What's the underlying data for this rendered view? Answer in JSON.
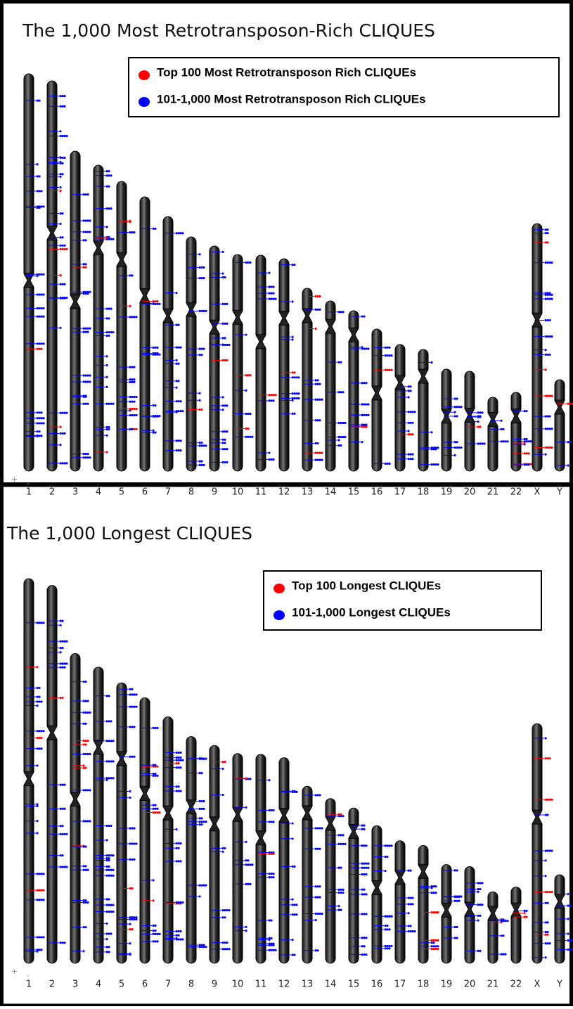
{
  "panels": [
    {
      "title": "The 1,000 Most Retrotransposon-Rich CLIQUES",
      "legend": [
        {
          "label": "Top 100 Most Retrotransposon Rich CLIQUEs",
          "color": "#ff0000"
        },
        {
          "label": "101-1,000 Most Retrotransposon Rich CLIQUEs",
          "color": "#0000ff"
        }
      ],
      "strand_labels": [
        "+",
        "-"
      ],
      "chromosomes": [
        "1",
        "2",
        "3",
        "4",
        "5",
        "6",
        "7",
        "8",
        "9",
        "10",
        "11",
        "12",
        "13",
        "14",
        "15",
        "16",
        "17",
        "18",
        "19",
        "20",
        "21",
        "22",
        "X",
        "Y"
      ]
    },
    {
      "title": "The 1,000 Longest CLIQUES",
      "legend": [
        {
          "label": "Top 100 Longest CLIQUEs",
          "color": "#ff0000"
        },
        {
          "label": "101-1,000 Longest CLIQUEs",
          "color": "#0000ff"
        }
      ],
      "strand_labels": [
        "+",
        "-"
      ],
      "chromosomes": [
        "1",
        "2",
        "3",
        "4",
        "5",
        "6",
        "7",
        "8",
        "9",
        "10",
        "11",
        "12",
        "13",
        "14",
        "15",
        "16",
        "17",
        "18",
        "19",
        "20",
        "21",
        "22",
        "X",
        "Y"
      ]
    }
  ]
}
